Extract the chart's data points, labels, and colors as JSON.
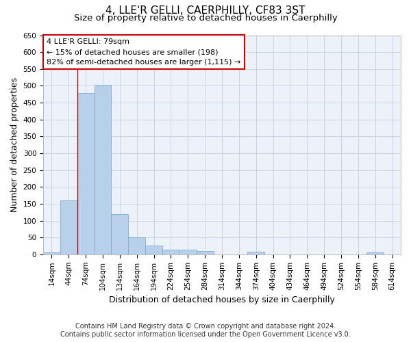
{
  "title": "4, LLE'R GELLI, CAERPHILLY, CF83 3ST",
  "subtitle": "Size of property relative to detached houses in Caerphilly",
  "xlabel": "Distribution of detached houses by size in Caerphilly",
  "ylabel": "Number of detached properties",
  "footer_line1": "Contains HM Land Registry data © Crown copyright and database right 2024.",
  "footer_line2": "Contains public sector information licensed under the Open Government Licence v3.0.",
  "annotation_title": "4 LLE'R GELLI: 79sqm",
  "annotation_line1": "← 15% of detached houses are smaller (198)",
  "annotation_line2": "82% of semi-detached houses are larger (1,115) →",
  "bar_categories": [
    "14sqm",
    "44sqm",
    "74sqm",
    "104sqm",
    "134sqm",
    "164sqm",
    "194sqm",
    "224sqm",
    "254sqm",
    "284sqm",
    "314sqm",
    "344sqm",
    "374sqm",
    "404sqm",
    "434sqm",
    "464sqm",
    "494sqm",
    "524sqm",
    "554sqm",
    "584sqm",
    "614sqm"
  ],
  "bar_values": [
    5,
    160,
    478,
    503,
    120,
    50,
    25,
    14,
    13,
    10,
    0,
    0,
    7,
    0,
    0,
    0,
    0,
    0,
    0,
    5,
    0
  ],
  "bar_color": "#b8d0ea",
  "bar_edge_color": "#7aadd4",
  "vline_color": "#cc0000",
  "annotation_box_color": "#cc0000",
  "grid_color": "#c8d4e8",
  "background_color": "#edf2f9",
  "ylim": [
    0,
    650
  ],
  "yticks": [
    0,
    50,
    100,
    150,
    200,
    250,
    300,
    350,
    400,
    450,
    500,
    550,
    600,
    650
  ],
  "title_fontsize": 11,
  "subtitle_fontsize": 9.5,
  "axis_label_fontsize": 9,
  "tick_fontsize": 7.5,
  "annotation_fontsize": 8,
  "footer_fontsize": 7
}
